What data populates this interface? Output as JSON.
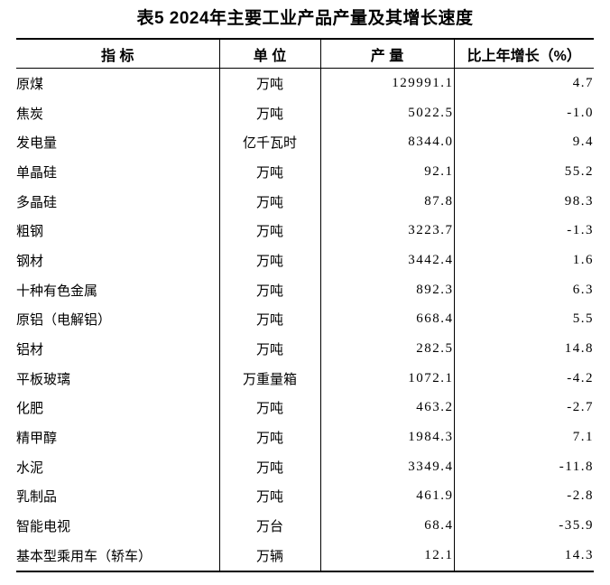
{
  "page": {
    "title": "表5 2024年主要工业产品产量及其增长速度"
  },
  "table": {
    "headers": [
      "指 标",
      "单 位",
      "产 量",
      "比上年增长（%）"
    ],
    "rows": [
      {
        "indicator": "原煤",
        "unit": "万吨",
        "output": "129991.1",
        "growth": "4.7"
      },
      {
        "indicator": "焦炭",
        "unit": "万吨",
        "output": "5022.5",
        "growth": "-1.0"
      },
      {
        "indicator": "发电量",
        "unit": "亿千瓦时",
        "output": "8344.0",
        "growth": "9.4"
      },
      {
        "indicator": "单晶硅",
        "unit": "万吨",
        "output": "92.1",
        "growth": "55.2"
      },
      {
        "indicator": "多晶硅",
        "unit": "万吨",
        "output": "87.8",
        "growth": "98.3"
      },
      {
        "indicator": "粗钢",
        "unit": "万吨",
        "output": "3223.7",
        "growth": "-1.3"
      },
      {
        "indicator": "钢材",
        "unit": "万吨",
        "output": "3442.4",
        "growth": "1.6"
      },
      {
        "indicator": "十种有色金属",
        "unit": "万吨",
        "output": "892.3",
        "growth": "6.3"
      },
      {
        "indicator": "原铝（电解铝）",
        "unit": "万吨",
        "output": "668.4",
        "growth": "5.5"
      },
      {
        "indicator": "铝材",
        "unit": "万吨",
        "output": "282.5",
        "growth": "14.8"
      },
      {
        "indicator": "平板玻璃",
        "unit": "万重量箱",
        "output": "1072.1",
        "growth": "-4.2"
      },
      {
        "indicator": "化肥",
        "unit": "万吨",
        "output": "463.2",
        "growth": "-2.7"
      },
      {
        "indicator": "精甲醇",
        "unit": "万吨",
        "output": "1984.3",
        "growth": "7.1"
      },
      {
        "indicator": "水泥",
        "unit": "万吨",
        "output": "3349.4",
        "growth": "-11.8"
      },
      {
        "indicator": "乳制品",
        "unit": "万吨",
        "output": "461.9",
        "growth": "-2.8"
      },
      {
        "indicator": "智能电视",
        "unit": "万台",
        "output": "68.4",
        "growth": "-35.9"
      },
      {
        "indicator": "基本型乘用车（轿车）",
        "unit": "万辆",
        "output": "12.1",
        "growth": "14.3"
      }
    ]
  }
}
